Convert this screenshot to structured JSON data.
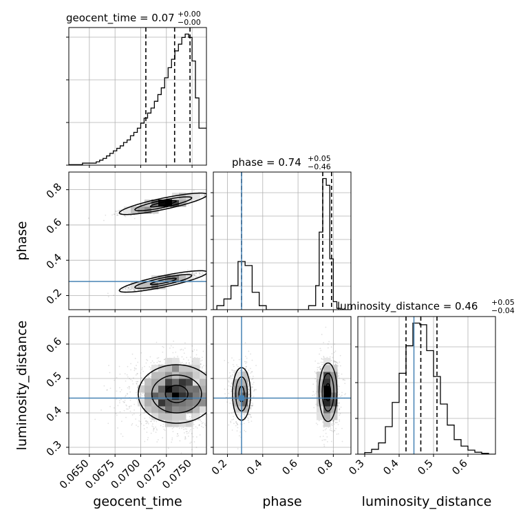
{
  "chart_data": {
    "type": "corner",
    "colors": {
      "truth": "#4682b4",
      "line": "#000000",
      "grid": "#b0b0b0"
    },
    "parameters": [
      {
        "name": "geocent_time",
        "range": [
          0.063,
          0.0764
        ],
        "ticks": [
          0.065,
          0.0675,
          0.07,
          0.0725,
          0.075
        ],
        "tick_labels": [
          "0.0650",
          "0.0675",
          "0.0700",
          "0.0725",
          "0.0750"
        ],
        "title": {
          "prefix": "geocent_time = ",
          "median": "0.07",
          "plus": "+0.00",
          "minus": "−0.00"
        },
        "quantiles": [
          0.0705,
          0.0733,
          0.0748
        ],
        "truth": null
      },
      {
        "name": "phase",
        "range": [
          0.12,
          0.9
        ],
        "ticks": [
          0.2,
          0.4,
          0.6,
          0.8
        ],
        "tick_labels": [
          "0.2",
          "0.4",
          "0.6",
          "0.8"
        ],
        "title": {
          "prefix": "phase = ",
          "median": "0.74",
          "plus": "+0.05",
          "minus": "−0.46"
        },
        "quantiles": [
          0.28,
          0.74,
          0.79
        ],
        "truth": 0.28
      },
      {
        "name": "luminosity_distance",
        "range": [
          0.28,
          0.68
        ],
        "ticks": [
          0.3,
          0.4,
          0.5,
          0.6
        ],
        "tick_labels": [
          "0.3",
          "0.4",
          "0.5",
          "0.6"
        ],
        "title": {
          "prefix": "luminosity_distance = ",
          "median": "0.46",
          "plus": "+0.05",
          "minus": "−0.04"
        },
        "quantiles": [
          0.42,
          0.463,
          0.51
        ],
        "truth": 0.443
      }
    ],
    "histograms": {
      "geocent_time": {
        "bin_edges": [
          0.063,
          0.06433,
          0.06567,
          0.066,
          0.06633,
          0.06667,
          0.067,
          0.06733,
          0.06767,
          0.068,
          0.06833,
          0.06867,
          0.069,
          0.06933,
          0.06967,
          0.07,
          0.07033,
          0.07067,
          0.071,
          0.07133,
          0.07167,
          0.072,
          0.07233,
          0.07267,
          0.073,
          0.07333,
          0.07367,
          0.074,
          0.07433,
          0.07467,
          0.075,
          0.07533,
          0.07567,
          0.0764
        ],
        "counts": [
          0.003,
          0.012,
          0.02,
          0.03,
          0.04,
          0.055,
          0.07,
          0.085,
          0.1,
          0.115,
          0.135,
          0.15,
          0.175,
          0.195,
          0.22,
          0.25,
          0.28,
          0.31,
          0.34,
          0.38,
          0.42,
          0.46,
          0.52,
          0.58,
          0.63,
          0.68,
          0.72,
          0.76,
          0.78,
          0.76,
          0.62,
          0.4,
          0.22
        ]
      },
      "phase": {
        "bin_edges": [
          0.12,
          0.14,
          0.18,
          0.22,
          0.26,
          0.3,
          0.34,
          0.38,
          0.42,
          0.46,
          0.5,
          0.54,
          0.58,
          0.62,
          0.66,
          0.7,
          0.72,
          0.74,
          0.76,
          0.78,
          0.8,
          0.82,
          0.84,
          0.9
        ],
        "counts": [
          0.0,
          0.03,
          0.08,
          0.18,
          0.36,
          0.33,
          0.13,
          0.03,
          0.0,
          0.0,
          0.0,
          0.0,
          0.0,
          0.0,
          0.03,
          0.18,
          0.58,
          0.98,
          0.93,
          0.38,
          0.06,
          0.01,
          0.0
        ]
      },
      "luminosity_distance": {
        "bin_edges": [
          0.28,
          0.3,
          0.32,
          0.34,
          0.36,
          0.38,
          0.4,
          0.42,
          0.44,
          0.46,
          0.48,
          0.5,
          0.52,
          0.54,
          0.56,
          0.58,
          0.6,
          0.62,
          0.64,
          0.66,
          0.68
        ],
        "counts": [
          0.0,
          0.01,
          0.03,
          0.07,
          0.17,
          0.32,
          0.5,
          0.67,
          0.81,
          0.8,
          0.64,
          0.48,
          0.31,
          0.18,
          0.09,
          0.05,
          0.025,
          0.012,
          0.005,
          0.0
        ]
      }
    },
    "scatter_clusters": {
      "phase_vs_geocent_time": [
        {
          "x_mean": 0.0722,
          "x_sd": 0.0018,
          "y_slope": 12.0,
          "y_at_x": 0.0722,
          "y_center": 0.72,
          "y_sd": 0.012,
          "n": 1400
        },
        {
          "x_mean": 0.0722,
          "x_sd": 0.0018,
          "y_slope": 12.0,
          "y_at_x": 0.0722,
          "y_center": 0.28,
          "y_sd": 0.012,
          "n": 900
        }
      ],
      "luminosity_distance_vs_geocent_time": [
        {
          "x_mean": 0.0735,
          "x_sd": 0.0022,
          "y_mean": 0.455,
          "y_sd": 0.05,
          "n": 2200
        }
      ],
      "luminosity_distance_vs_phase": [
        {
          "x_mean": 0.28,
          "x_sd": 0.03,
          "y_mean": 0.455,
          "y_sd": 0.045,
          "n": 700
        },
        {
          "x_mean": 0.77,
          "x_sd": 0.03,
          "y_mean": 0.46,
          "y_sd": 0.05,
          "n": 1300
        }
      ]
    },
    "grid": true
  }
}
